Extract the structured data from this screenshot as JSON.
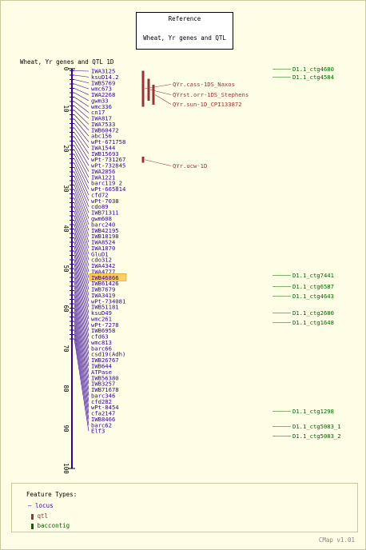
{
  "reference": {
    "title": "Reference",
    "map_name": "Wheat, Yr genes and QTL"
  },
  "map_title": "Wheat, Yr genes and QTL 1D",
  "ruler": {
    "ticks": [
      "0",
      "10",
      "20",
      "30",
      "40",
      "50",
      "60",
      "70",
      "80",
      "90",
      "100"
    ],
    "min": 0,
    "max": 100
  },
  "loci": [
    {
      "name": "IWA3125",
      "pos": 0.5
    },
    {
      "name": "ksuD14.2",
      "pos": 1.6
    },
    {
      "name": "IWB5769",
      "pos": 2.7
    },
    {
      "name": "wmc673",
      "pos": 3.8
    },
    {
      "name": "IWA2268",
      "pos": 4.9
    },
    {
      "name": "gwm33",
      "pos": 6.0
    },
    {
      "name": "wmc336",
      "pos": 7.1
    },
    {
      "name": "cn17",
      "pos": 8.2
    },
    {
      "name": "IWA817",
      "pos": 9.3
    },
    {
      "name": "IWA7533",
      "pos": 10.4
    },
    {
      "name": "IWB60472",
      "pos": 11.5
    },
    {
      "name": "abc156",
      "pos": 12.6
    },
    {
      "name": "wPt-671758",
      "pos": 13.7
    },
    {
      "name": "IWA1544",
      "pos": 14.8
    },
    {
      "name": "IWB15693",
      "pos": 15.9
    },
    {
      "name": "wPt-731267",
      "pos": 17.0
    },
    {
      "name": "wPt-732845",
      "pos": 18.1
    },
    {
      "name": "IWA2056",
      "pos": 19.2
    },
    {
      "name": "IWA1221",
      "pos": 20.3
    },
    {
      "name": "barc119_2",
      "pos": 21.4
    },
    {
      "name": "wPt-665814",
      "pos": 22.5
    },
    {
      "name": "cfd72",
      "pos": 23.6
    },
    {
      "name": "wPt-7038",
      "pos": 24.7
    },
    {
      "name": "cdo89",
      "pos": 25.8
    },
    {
      "name": "IWB71311",
      "pos": 26.9
    },
    {
      "name": "gwm608",
      "pos": 28.0
    },
    {
      "name": "barc240",
      "pos": 29.1
    },
    {
      "name": "IWB42195",
      "pos": 30.2
    },
    {
      "name": "IWB18198",
      "pos": 31.3
    },
    {
      "name": "IWA8524",
      "pos": 32.4
    },
    {
      "name": "IWA1870",
      "pos": 33.5
    },
    {
      "name": "GluD1",
      "pos": 34.6
    },
    {
      "name": "cdo312",
      "pos": 35.7
    },
    {
      "name": "IWA4342",
      "pos": 36.8
    },
    {
      "name": "IWA4777",
      "pos": 37.9
    },
    {
      "name": "IWB46866",
      "pos": 39.0,
      "highlight": true
    },
    {
      "name": "IWB61426",
      "pos": 40.1
    },
    {
      "name": "IWB7679",
      "pos": 41.2
    },
    {
      "name": "IWA3419",
      "pos": 42.3
    },
    {
      "name": "wPt-734081",
      "pos": 43.4
    },
    {
      "name": "IWB51181",
      "pos": 44.5
    },
    {
      "name": "ksuD49",
      "pos": 45.6
    },
    {
      "name": "wmc261",
      "pos": 46.7
    },
    {
      "name": "wPt-7278",
      "pos": 47.8
    },
    {
      "name": "IWB6958",
      "pos": 48.9
    },
    {
      "name": "cfd63",
      "pos": 50.0
    },
    {
      "name": "wmc813",
      "pos": 51.1
    },
    {
      "name": "barc66",
      "pos": 52.2
    },
    {
      "name": "csd19(Adh)",
      "pos": 53.3
    },
    {
      "name": "IWB26767",
      "pos": 54.4
    },
    {
      "name": "IWB644",
      "pos": 55.5
    },
    {
      "name": "ATPase",
      "pos": 56.6
    },
    {
      "name": "IWB56380",
      "pos": 57.7
    },
    {
      "name": "IWB3257",
      "pos": 58.8
    },
    {
      "name": "IWB71678",
      "pos": 59.9
    },
    {
      "name": "barc346",
      "pos": 61.0
    },
    {
      "name": "cfd282",
      "pos": 62.1
    },
    {
      "name": "wPt-8454",
      "pos": 63.2
    },
    {
      "name": "cfa2147",
      "pos": 64.3
    },
    {
      "name": "IWB8466",
      "pos": 65.4
    },
    {
      "name": "barc62",
      "pos": 66.5
    },
    {
      "name": "Elf3",
      "pos": 67.6
    }
  ],
  "qtls": [
    {
      "name": "QYr.cass-1DS_Naxos",
      "start": 0.5,
      "end": 9.5
    },
    {
      "name": "QYrst.orr-1DS_Stephens",
      "start": 2.5,
      "end": 8.0
    },
    {
      "name": "QYr.sun-1D_CPI133872",
      "start": 4.0,
      "end": 9.0
    },
    {
      "name": "QYr.ucw-1D",
      "start": 22.0,
      "end": 23.5
    }
  ],
  "contigs": [
    {
      "name": "D1.1_ctg4680",
      "pos": 1.0
    },
    {
      "name": "D1.1_ctg4584",
      "pos": 2.5
    },
    {
      "name": "D1.1_ctg7441",
      "pos": 52.0
    },
    {
      "name": "D1.1_ctg6587",
      "pos": 54.0
    },
    {
      "name": "D1.1_ctg4643",
      "pos": 55.5
    },
    {
      "name": "D1.1_ctg2680",
      "pos": 59.5
    },
    {
      "name": "D1.1_ctg1648",
      "pos": 61.0
    },
    {
      "name": "D1.1_ctg1298",
      "pos": 84.0
    },
    {
      "name": "D1.1_ctg5083_1",
      "pos": 88.5
    },
    {
      "name": "D1.1_ctg5083_2",
      "pos": 90.5
    }
  ],
  "legend": {
    "title": "Feature Types:",
    "items": [
      {
        "label": "locus"
      },
      {
        "label": "qtl"
      },
      {
        "label": "baccontig"
      }
    ]
  },
  "version": "CMap v1.01",
  "colors": {
    "locus": "#330099",
    "qtl": "#993333",
    "contig": "#006600",
    "highlight": "#ffcc66",
    "axis": "#000000"
  }
}
